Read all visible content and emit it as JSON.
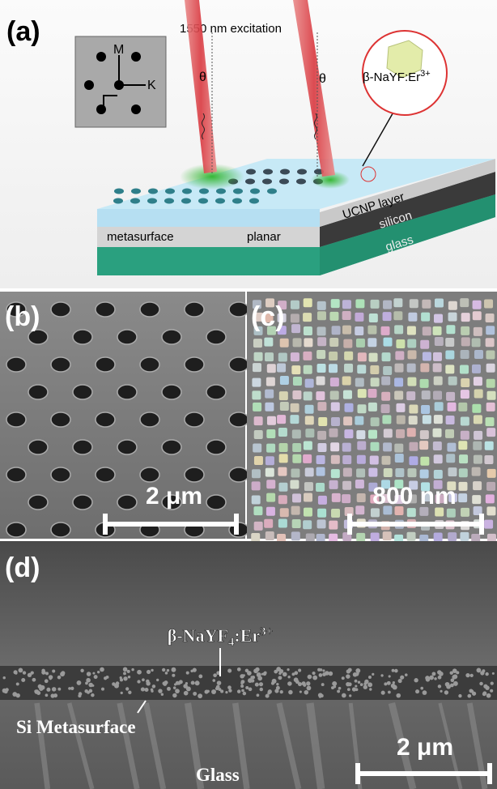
{
  "panel_a": {
    "label": "(a)",
    "excitation": "1550 nm excitation",
    "inset_m": "M",
    "inset_k": "K",
    "theta_left": "θ",
    "theta_right": "θ",
    "particle_label_parts": [
      "β-NaYF",
      ":Er",
      "3+"
    ],
    "layers": [
      "UCNP layer",
      "silicon",
      "glass"
    ],
    "regions": [
      "metasurface",
      "planar"
    ]
  },
  "panel_b": {
    "label": "(b)",
    "scale_bar": "2 μm"
  },
  "panel_c": {
    "label": "(c)",
    "scale_bar": "800 nm"
  },
  "panel_d": {
    "label": "(d)",
    "film_label_parts": [
      "β-NaYF",
      "4",
      ":Er",
      "3+"
    ],
    "substrate_label": "Si Metasurface",
    "glass_label": "Glass",
    "scale_bar": "2 μm"
  }
}
